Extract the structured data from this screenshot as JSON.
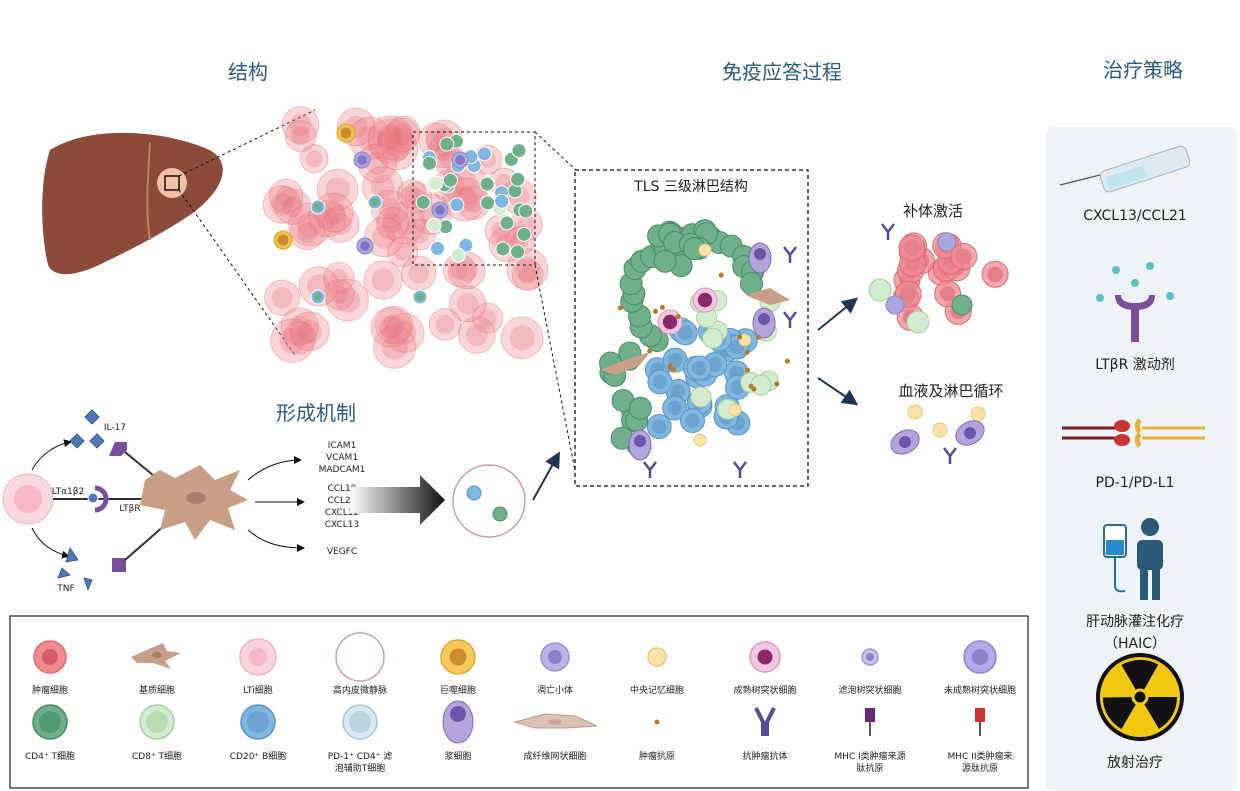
{
  "sections": {
    "structure": "结构",
    "immune_response": "免疫应答过程",
    "therapy": "治疗策略",
    "mechanism": "形成机制"
  },
  "tls": {
    "title": "TLS 三级淋巴结构",
    "complement": "补体激活",
    "circulation": "血液及淋巴循环"
  },
  "mechanism": {
    "il17": "IL-17",
    "lta": "LTα1β2",
    "ltbr": "LTβR",
    "tnf": "TNF",
    "outputs_1": [
      "ICAM1",
      "VCAM1",
      "MADCAM1"
    ],
    "outputs_2": [
      "CCL19",
      "CCL21",
      "CXCL12",
      "CXCL13"
    ],
    "outputs_3": [
      "VEGFC"
    ]
  },
  "therapies": [
    {
      "label": "CXCL13/CCL21",
      "icon": "syringe-icon"
    },
    {
      "label": "LTβR 激动剂",
      "icon": "receptor-agonist-icon"
    },
    {
      "label": "PD-1/PD-L1",
      "icon": "checkpoint-icon"
    },
    {
      "label": "肝动脉灌注化疗",
      "label2": "（HAIC）",
      "icon": "iv-drip-patient-icon"
    },
    {
      "label": "放射治疗",
      "icon": "radiation-icon"
    }
  ],
  "legend": {
    "row1": [
      "肿瘤细胞",
      "基质细胞",
      "LTi细胞",
      "高内皮微静脉",
      "巨噬细胞",
      "凋亡小体",
      "中央记忆细胞",
      "成熟树突状细胞",
      "滤泡树突状细胞",
      "未成熟树突状细胞"
    ],
    "row2": [
      [
        "CD4⁺ T细胞"
      ],
      [
        "CD8⁺ T细胞"
      ],
      [
        "CD20⁺ B细胞"
      ],
      [
        "PD-1⁺ CD4⁺ 滤",
        "泡辅助T细胞"
      ],
      [
        "浆细胞"
      ],
      [
        "成纤维网状细胞"
      ],
      [
        "肿瘤抗原"
      ],
      [
        "抗肿瘤抗体"
      ],
      [
        "MHC I类肿瘤来源",
        "肽抗原"
      ],
      [
        "MHC II类肿瘤来",
        "源肽抗原"
      ]
    ]
  },
  "colors": {
    "title": "#2b5c7e",
    "tumor": "#f08a8f",
    "cd4": "#6fb08a",
    "cd8": "#d3ecd0",
    "bcell": "#7fb7e0",
    "stromal": "#c79f86",
    "liver": "#8b4a3a",
    "panel": "#eef3f7"
  }
}
